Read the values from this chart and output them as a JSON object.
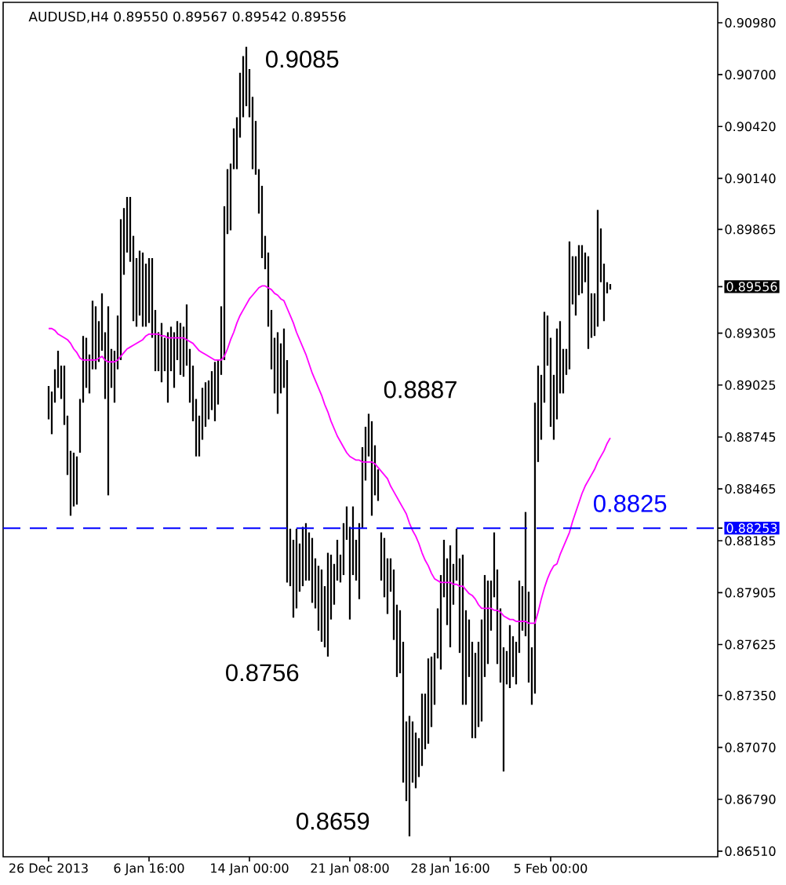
{
  "chart_data": {
    "type": "bar",
    "title": "AUDUSD,H4 0.89550 0.89567 0.89542 0.89556",
    "categories": [
      "26 Dec 2013",
      null,
      null,
      null,
      null,
      null,
      null,
      null,
      null,
      null,
      null,
      null,
      null,
      null,
      null,
      null,
      null,
      null,
      null,
      null,
      null,
      null,
      null,
      null,
      null,
      null,
      null,
      null,
      null,
      null,
      null,
      null,
      "6 Jan 16:00",
      null,
      null,
      null,
      null,
      null,
      null,
      null,
      null,
      null,
      null,
      null,
      null,
      null,
      null,
      null,
      null,
      null,
      null,
      null,
      null,
      null,
      null,
      null,
      null,
      null,
      null,
      null,
      null,
      null,
      null,
      null,
      "14 Jan 00:00",
      null,
      null,
      null,
      null,
      null,
      null,
      null,
      null,
      null,
      null,
      null,
      null,
      null,
      null,
      null,
      null,
      null,
      null,
      null,
      null,
      null,
      null,
      null,
      null,
      null,
      null,
      null,
      null,
      null,
      null,
      null,
      "21 Jan 08:00",
      null,
      null,
      null,
      null,
      null,
      null,
      null,
      null,
      null,
      null,
      null,
      null,
      null,
      null,
      null,
      null,
      null,
      null,
      null,
      null,
      null,
      null,
      null,
      null,
      null,
      null,
      null,
      null,
      null,
      null,
      null,
      "28 Jan 16:00",
      null,
      null,
      null,
      null,
      null,
      null,
      null,
      null,
      null,
      null,
      null,
      null,
      null,
      null,
      null,
      null,
      null,
      null,
      null,
      null,
      null,
      null,
      null,
      null,
      null,
      null,
      null,
      null,
      null,
      null,
      null,
      "5 Feb 00:00",
      null,
      null,
      null,
      null,
      null,
      null,
      null,
      null,
      null,
      null,
      null,
      null,
      null,
      null,
      null,
      null,
      null,
      null,
      null
    ],
    "ylim": [
      0.8648,
      0.9109
    ],
    "yticks": [
      {
        "value": 0.9098,
        "label": "0.90980"
      },
      {
        "value": 0.907,
        "label": "0.90700"
      },
      {
        "value": 0.9042,
        "label": "0.90420"
      },
      {
        "value": 0.9014,
        "label": "0.90140"
      },
      0.89865,
      0.89556,
      0.89305,
      0.89025,
      0.88745,
      0.88465,
      0.88253,
      0.88185,
      0.87905,
      0.87625,
      {
        "value": 0.8735,
        "label": "0.87350"
      },
      {
        "value": 0.8707,
        "label": "0.87070"
      },
      {
        "value": 0.8679,
        "label": "0.86790"
      },
      {
        "value": 0.8651,
        "label": "0.86510"
      }
    ],
    "series": [
      {
        "color": "#000000",
        "base": [
          0.8884,
          0.8876,
          0.8893,
          0.8901,
          0.8895,
          0.8881,
          0.8854,
          0.8832,
          0.8837,
          0.8838,
          0.8866,
          0.8893,
          0.8901,
          0.8898,
          0.8911,
          0.8911,
          0.8915,
          0.8921,
          0.8895,
          0.8843,
          0.8901,
          0.8893,
          0.8911,
          0.8916,
          0.8962,
          0.8974,
          0.8969,
          0.8937,
          0.8934,
          0.894,
          0.8934,
          0.8934,
          0.8936,
          0.8928,
          0.891,
          0.891,
          0.8904,
          0.891,
          0.8893,
          0.891,
          0.8901,
          0.8916,
          0.8908,
          0.8907,
          0.8913,
          0.8893,
          0.8883,
          0.8864,
          0.8864,
          0.8873,
          0.888,
          0.8884,
          0.8889,
          0.8883,
          0.8892,
          0.8908,
          0.8916,
          0.8984,
          0.8986,
          0.9019,
          0.9019,
          0.9036,
          0.9047,
          0.9053,
          0.9047,
          0.9019,
          0.9016,
          0.8995,
          0.8971,
          0.8965,
          0.8934,
          0.8911,
          0.8898,
          0.8887,
          0.8898,
          0.8901,
          0.8796,
          0.8794,
          0.8777,
          0.8782,
          0.8791,
          0.8794,
          0.8797,
          0.8797,
          0.8785,
          0.8782,
          0.877,
          0.8764,
          0.8761,
          0.8756,
          0.8776,
          0.8784,
          0.8797,
          0.8796,
          0.88,
          0.8819,
          0.8776,
          0.88,
          0.8797,
          0.8787,
          0.8825,
          0.8851,
          0.8864,
          0.8832,
          0.8843,
          0.884,
          0.8797,
          0.8788,
          0.8779,
          0.8791,
          0.8765,
          0.8745,
          0.8747,
          0.8688,
          0.8678,
          0.8659,
          0.8688,
          0.8685,
          0.8691,
          0.8697,
          0.8706,
          0.8709,
          0.8718,
          0.873,
          0.8755,
          0.8749,
          0.8788,
          0.8773,
          0.8761,
          0.8784,
          0.8797,
          0.8758,
          0.873,
          0.873,
          0.8745,
          0.8712,
          0.8712,
          0.8718,
          0.8721,
          0.8745,
          0.8752,
          0.877,
          0.8788,
          0.8752,
          0.8742,
          0.8694,
          0.8741,
          0.8739,
          0.8745,
          0.8741,
          0.8758,
          0.877,
          0.8767,
          0.8742,
          0.873,
          0.8736,
          0.8861,
          0.8873,
          0.8893,
          0.8913,
          0.888,
          0.8873,
          0.8884,
          0.8898,
          0.8898,
          0.8908,
          0.8911,
          0.8946,
          0.894,
          0.8951,
          0.8952,
          0.8958,
          0.8922,
          0.8928,
          0.8929,
          0.8934,
          0.8958,
          0.8937,
          0.8952,
          0.8954
        ],
        "values": [
          0.0018,
          0.0023,
          0.0018,
          0.002,
          0.0018,
          0.0032,
          0.0032,
          0.0035,
          0.0029,
          0.0026,
          0.0029,
          0.0036,
          0.0027,
          0.0021,
          0.0037,
          0.0034,
          0.0022,
          0.0031,
          0.0036,
          0.0102,
          0.0021,
          0.0028,
          0.0029,
          0.0076,
          0.0036,
          0.003,
          0.0035,
          0.0046,
          0.0037,
          0.0035,
          0.004,
          0.0034,
          0.0035,
          0.0043,
          0.0033,
          0.0021,
          0.0032,
          0.0018,
          0.0038,
          0.0024,
          0.003,
          0.0021,
          0.0028,
          0.0027,
          0.0033,
          0.0029,
          0.003,
          0.0031,
          0.0022,
          0.0028,
          0.0024,
          0.0021,
          0.0021,
          0.0032,
          0.0024,
          0.0037,
          0.0083,
          0.0035,
          0.0036,
          0.0022,
          0.0028,
          0.0035,
          0.0033,
          0.0032,
          0.0026,
          0.0039,
          0.0029,
          0.0024,
          0.0039,
          0.0018,
          0.004,
          0.0032,
          0.003,
          0.0044,
          0.0027,
          0.0032,
          0.012,
          0.0031,
          0.0042,
          0.0043,
          0.0026,
          0.0032,
          0.0031,
          0.0026,
          0.0035,
          0.0027,
          0.0035,
          0.0039,
          0.0033,
          0.0056,
          0.0035,
          0.0022,
          0.0022,
          0.0015,
          0.0028,
          0.0018,
          0.005,
          0.0037,
          0.0022,
          0.0041,
          0.0044,
          0.0029,
          0.0023,
          0.0051,
          0.0027,
          0.0017,
          0.0026,
          0.0032,
          0.003,
          0.0018,
          0.0038,
          0.0039,
          0.0034,
          0.0076,
          0.0043,
          0.0065,
          0.0033,
          0.003,
          0.0021,
          0.0039,
          0.003,
          0.0046,
          0.0038,
          0.0028,
          0.0027,
          0.0051,
          0.0031,
          0.0036,
          0.0055,
          0.0022,
          0.0028,
          0.0051,
          0.0081,
          0.0051,
          0.0031,
          0.0052,
          0.0046,
          0.0046,
          0.0055,
          0.0055,
          0.0045,
          0.0027,
          0.0035,
          0.0051,
          0.004,
          0.0067,
          0.0018,
          0.0034,
          0.0022,
          0.0023,
          0.0039,
          0.0024,
          0.0067,
          0.0049,
          0.0031,
          0.0157,
          0.0052,
          0.0035,
          0.0049,
          0.0027,
          0.0048,
          0.0035,
          0.0049,
          0.0039,
          0.0024,
          0.0014,
          0.0069,
          0.0026,
          0.0032,
          0.0027,
          0.0026,
          0.0016,
          0.005,
          0.0024,
          0.0023,
          0.0063,
          0.0029,
          0.0031,
          0.0006,
          0.0003
        ]
      },
      {
        "type": "line",
        "color": "#ff00ff",
        "values": [
          0.8933,
          0.8933,
          0.8932,
          0.893,
          0.8929,
          0.8928,
          0.8927,
          0.8925,
          0.8922,
          0.892,
          0.8917,
          0.8916,
          0.8916,
          0.8916,
          0.8916,
          0.8916,
          0.8917,
          0.8918,
          0.8916,
          0.8915,
          0.8915,
          0.8915,
          0.8916,
          0.8918,
          0.892,
          0.8922,
          0.8923,
          0.8924,
          0.8925,
          0.8926,
          0.8927,
          0.8929,
          0.893,
          0.893,
          0.893,
          0.893,
          0.8929,
          0.8929,
          0.8928,
          0.8928,
          0.8928,
          0.8928,
          0.8928,
          0.8928,
          0.8927,
          0.8926,
          0.8925,
          0.8923,
          0.8921,
          0.892,
          0.8919,
          0.8918,
          0.8917,
          0.8916,
          0.8916,
          0.8916,
          0.8918,
          0.8922,
          0.8927,
          0.8931,
          0.8936,
          0.894,
          0.8943,
          0.8946,
          0.8949,
          0.8951,
          0.8953,
          0.8955,
          0.8956,
          0.8956,
          0.8955,
          0.8954,
          0.8952,
          0.8951,
          0.8949,
          0.8948,
          0.8944,
          0.894,
          0.8936,
          0.8931,
          0.8927,
          0.8923,
          0.8919,
          0.8914,
          0.8909,
          0.8905,
          0.8901,
          0.8897,
          0.8892,
          0.8888,
          0.8883,
          0.8879,
          0.8875,
          0.8872,
          0.8869,
          0.8866,
          0.8864,
          0.8863,
          0.8862,
          0.8862,
          0.8861,
          0.8861,
          0.8861,
          0.8861,
          0.886,
          0.8858,
          0.8856,
          0.8854,
          0.8852,
          0.8848,
          0.8845,
          0.8842,
          0.8839,
          0.8836,
          0.8833,
          0.8828,
          0.8824,
          0.8821,
          0.8817,
          0.8812,
          0.8808,
          0.8805,
          0.8801,
          0.8798,
          0.8797,
          0.8796,
          0.8796,
          0.8796,
          0.8796,
          0.8795,
          0.8795,
          0.8794,
          0.8794,
          0.8792,
          0.879,
          0.8789,
          0.8787,
          0.8784,
          0.8782,
          0.8782,
          0.8782,
          0.8782,
          0.8781,
          0.8781,
          0.878,
          0.8778,
          0.8777,
          0.8776,
          0.8776,
          0.8775,
          0.8775,
          0.8775,
          0.8775,
          0.8774,
          0.8774,
          0.8774,
          0.878,
          0.8787,
          0.8793,
          0.8798,
          0.8802,
          0.8805,
          0.8806,
          0.8811,
          0.8815,
          0.8819,
          0.8823,
          0.8829,
          0.8834,
          0.8839,
          0.8844,
          0.8848,
          0.8851,
          0.8854,
          0.8857,
          0.8861,
          0.8864,
          0.8867,
          0.8871,
          0.8874
        ]
      }
    ],
    "ref_lines": [
      {
        "axis": "y",
        "value": 0.88253,
        "label": "0.8825",
        "color": "#0000ff",
        "line_style": "dashed"
      }
    ],
    "annotations": [
      "0.9085",
      "0.8887",
      "0.8756",
      "0.8659"
    ]
  }
}
